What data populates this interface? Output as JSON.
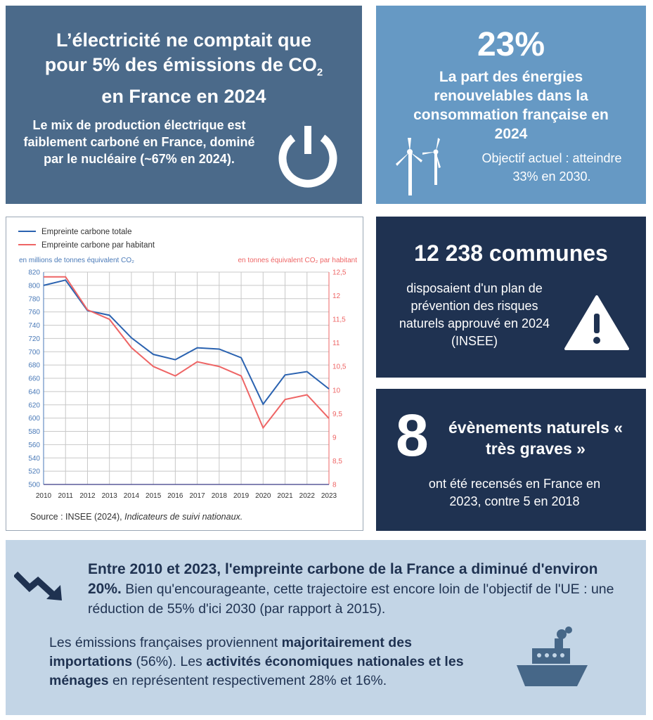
{
  "electricity": {
    "title_1": "L’électricité ne comptait que",
    "title_2": "pour 5% des émissions de CO",
    "title_sub": "2",
    "title_3": "en France en 2024",
    "text": "Le mix de production électrique est faiblement carboné en France, dominé par le nucléaire (~67% en 2024).",
    "icon": "power-icon"
  },
  "renewables": {
    "percent": "23%",
    "text": "La part des énergies renouvelables dans la consommation française en 2024",
    "objective": "Objectif actuel : atteindre 33% en 2030.",
    "icon": "wind-turbine-icon"
  },
  "communes": {
    "title": "12 238 communes",
    "text": "disposaient d'un plan de prévention des risques naturels approuvé en 2024 (INSEE)",
    "icon": "warning-icon"
  },
  "events": {
    "number": "8",
    "title": "évènements naturels « très graves »",
    "text": "ont été recensés en France en 2023, contre 5 en 2018"
  },
  "bottom": {
    "bold_1": "Entre 2010 et 2023, l'empreinte carbone de la France a diminué d'environ 20%.",
    "text_1": " Bien qu'encourageante, cette trajectoire est encore loin de l'objectif de l'UE : une réduction de 55% d'ici 2030 (par rapport à 2015).",
    "p2_a": "Les émissions françaises proviennent ",
    "p2_b": "majoritairement des importations",
    "p2_c": " (56%). Les ",
    "p2_d": "activités économiques nationales et les ménages",
    "p2_e": " en représentent respectivement 28% et 16%.",
    "icons": [
      "trend-down-icon",
      "ship-icon"
    ]
  },
  "chart_data": {
    "type": "line",
    "x": [
      2010,
      2011,
      2012,
      2013,
      2014,
      2015,
      2016,
      2017,
      2018,
      2019,
      2020,
      2021,
      2022,
      2023
    ],
    "series": [
      {
        "name": "Empreinte carbone totale",
        "axis": "left",
        "color": "#2a62b0",
        "values": [
          800,
          808,
          762,
          755,
          721,
          696,
          688,
          706,
          704,
          691,
          621,
          665,
          670,
          644
        ]
      },
      {
        "name": "Empreinte carbone par habitant",
        "axis": "right",
        "color": "#ee6565",
        "values": [
          12.4,
          12.4,
          11.7,
          11.5,
          10.9,
          10.5,
          10.3,
          10.6,
          10.5,
          10.3,
          9.2,
          9.8,
          9.9,
          9.4
        ]
      }
    ],
    "ylabel": "en millions de tonnes équivalent CO₂",
    "y2label": "en tonnes équivalent CO₂ par habitant",
    "ylim": [
      500,
      820
    ],
    "y2lim": [
      8,
      12.5
    ],
    "yticks": [
      500,
      520,
      540,
      560,
      580,
      600,
      620,
      640,
      660,
      680,
      700,
      720,
      740,
      760,
      780,
      800,
      820
    ],
    "y2ticks": [
      "8",
      "8,5",
      "9",
      "9,5",
      "10",
      "10,5",
      "11",
      "11,5",
      "12",
      "12,5"
    ],
    "grid": true,
    "legend": "top-left",
    "source_a": "Source : INSEE (2024), ",
    "source_b": "Indicateurs de suivi nationaux."
  }
}
